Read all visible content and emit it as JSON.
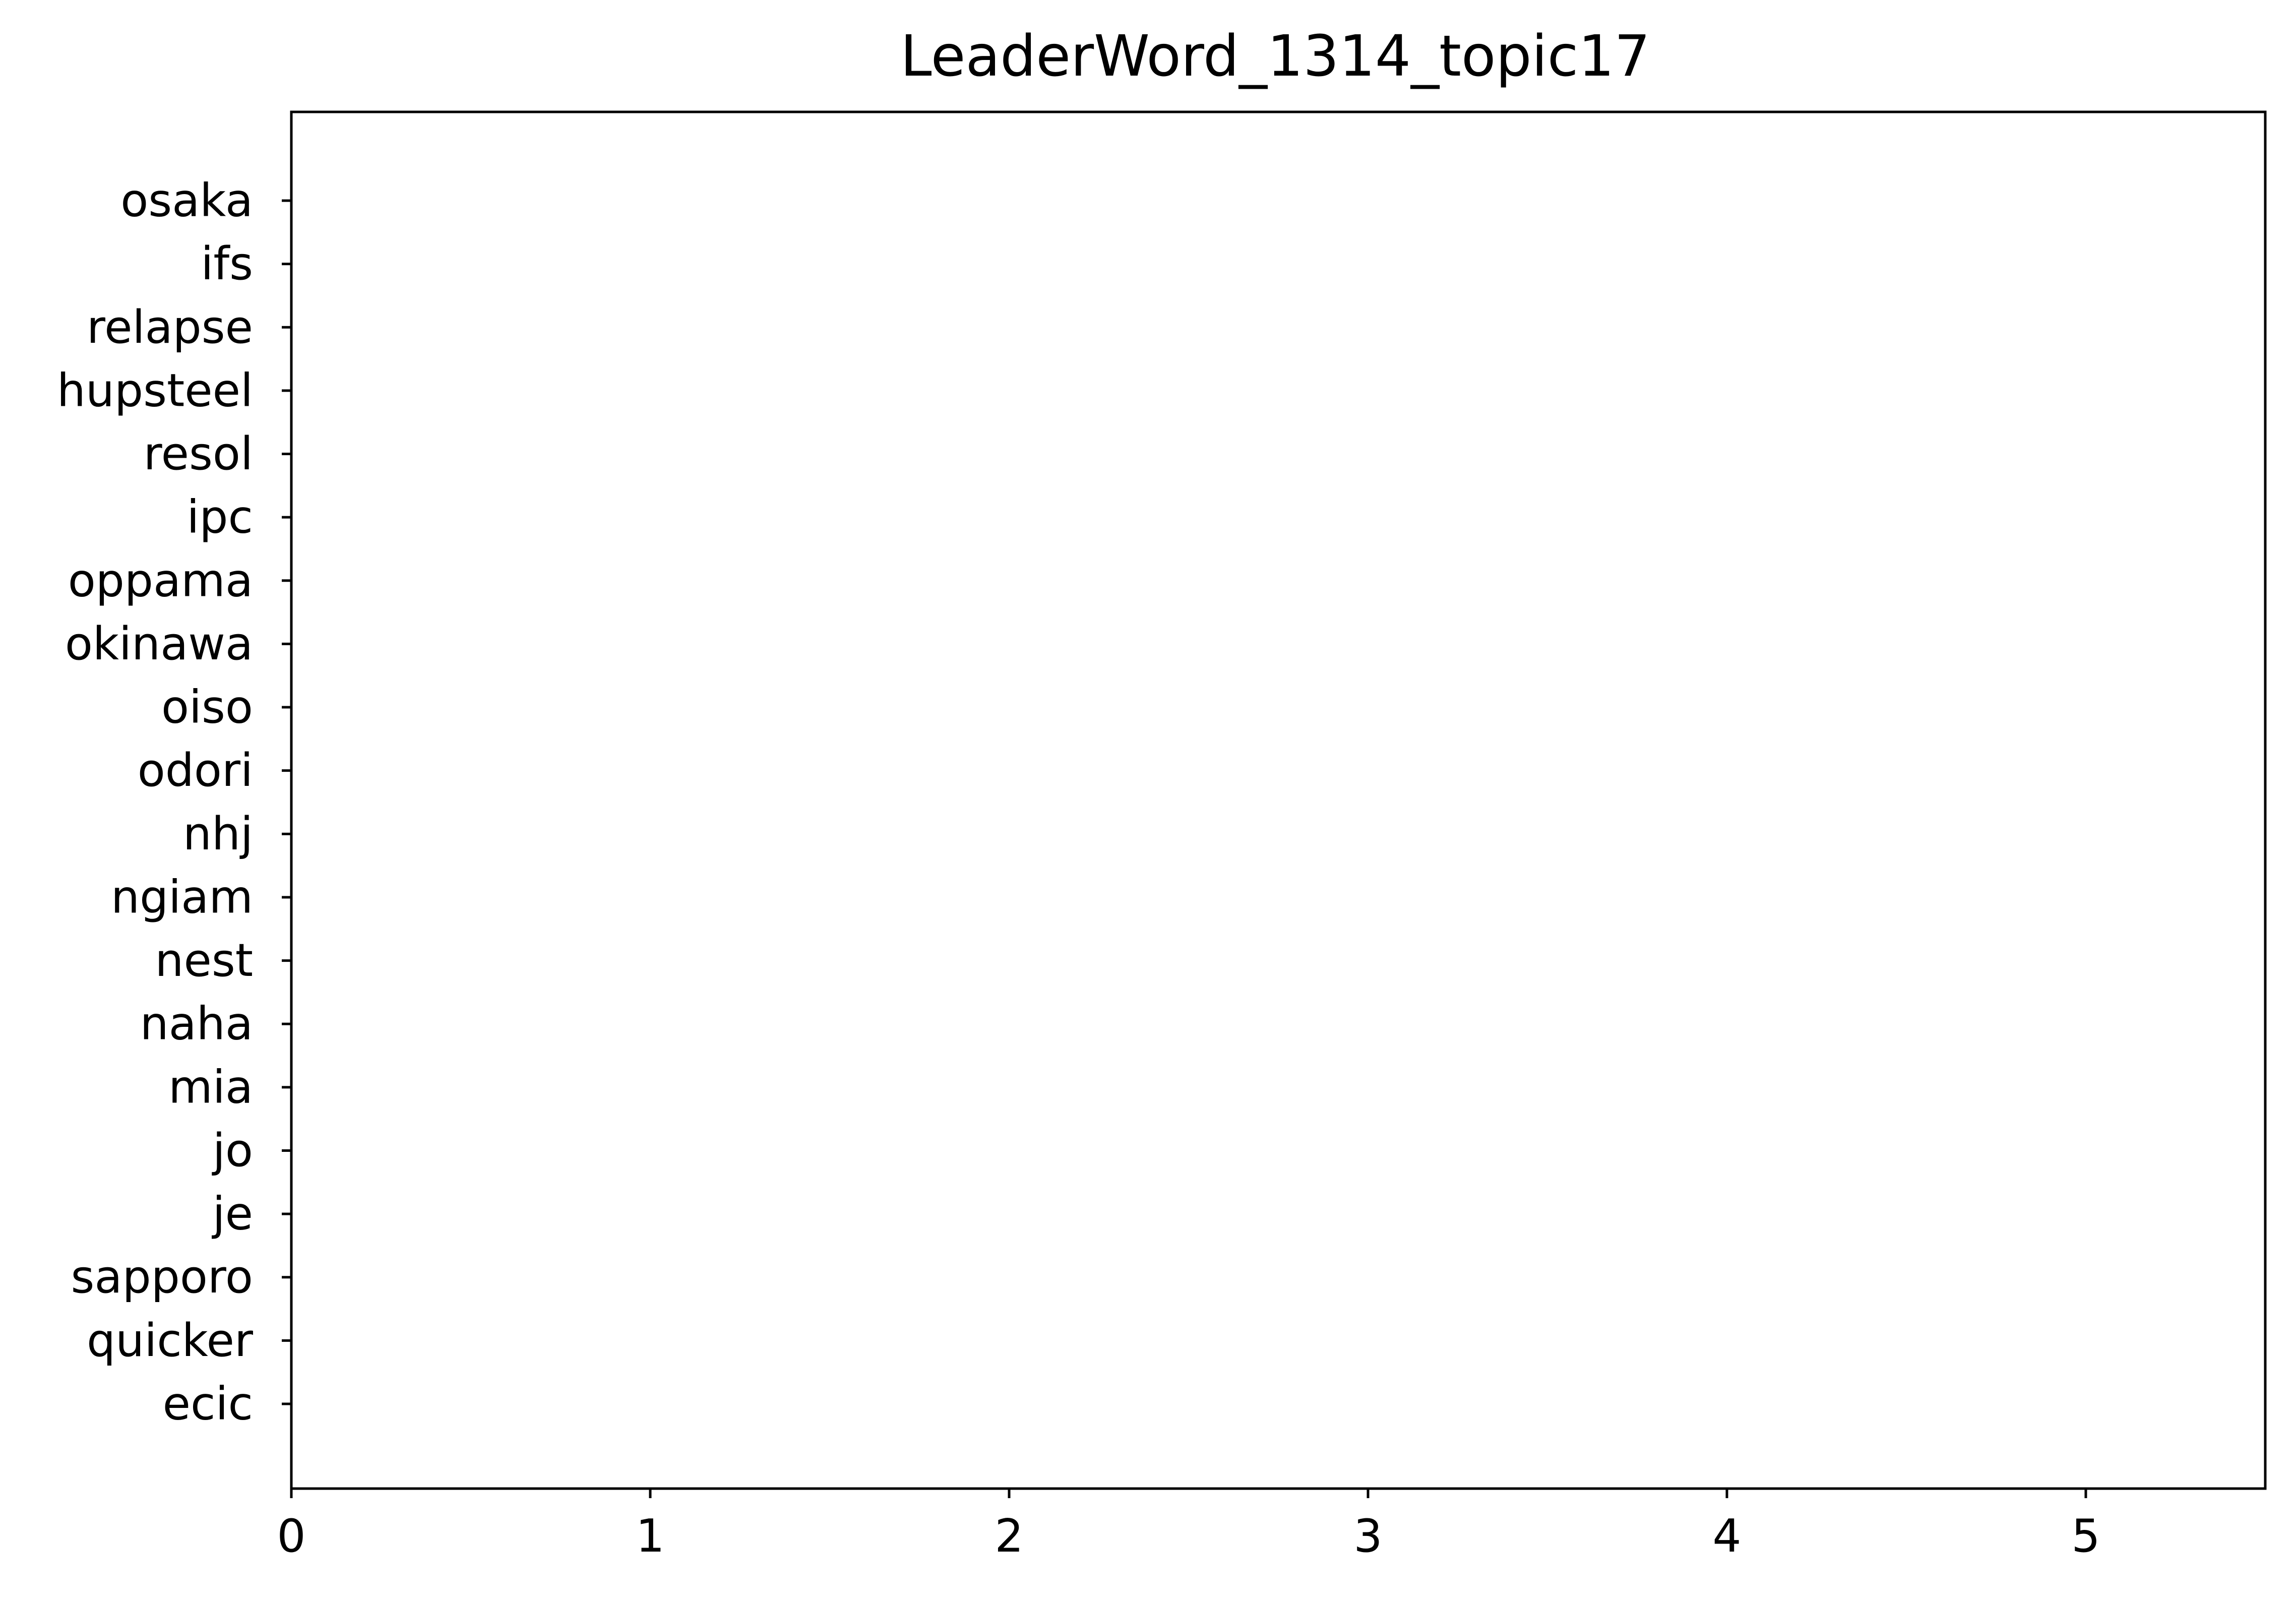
{
  "chart_data": {
    "type": "bar",
    "orientation": "horizontal",
    "title": "LeaderWord_1314_topic17",
    "xlabel": "",
    "ylabel": "",
    "categories": [
      "osaka",
      "ifs",
      "relapse",
      "hupsteel",
      "resol",
      "ipc",
      "oppama",
      "okinawa",
      "oiso",
      "odori",
      "nhj",
      "ngiam",
      "nest",
      "naha",
      "mia",
      "jo",
      "je",
      "sapporo",
      "quicker",
      "ecic"
    ],
    "values": [
      0.003,
      0.003,
      0.003,
      0.003,
      0.003,
      0.003,
      0.003,
      0.003,
      0.003,
      0.003,
      0.003,
      0.003,
      0.003,
      0.003,
      0.003,
      0.003,
      0.003,
      0.003,
      0.003,
      0.003
    ],
    "xlim": [
      0,
      5.5
    ],
    "xticks": [
      0,
      1,
      2,
      3,
      4,
      5
    ],
    "grid": false,
    "bar_color": "#1f77b4"
  }
}
